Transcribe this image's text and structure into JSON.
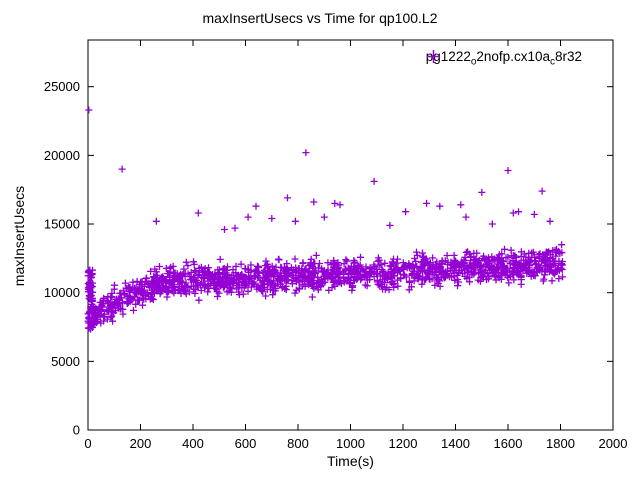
{
  "background": "#ffffff",
  "chart_data": {
    "type": "scatter",
    "title": "maxInsertUsecs vs Time for qp100.L2",
    "xlabel": "Time(s)",
    "ylabel": "maxInsertUsecs",
    "xlim": [
      0,
      2000
    ],
    "ylim": [
      0,
      28400
    ],
    "xticks": [
      0,
      200,
      400,
      600,
      800,
      1000,
      1200,
      1400,
      1600,
      1800,
      2000
    ],
    "yticks": [
      0,
      5000,
      10000,
      15000,
      20000,
      25000
    ],
    "grid": false,
    "legend_position": "top-right-inside",
    "marker": {
      "shape": "plus",
      "color": "#9400d3",
      "size": 7
    },
    "axis_color": "#000000",
    "series": [
      {
        "name": "pg1222_o2nofp.cx10a_c8r32",
        "legend_segments": [
          {
            "t": "pg1222"
          },
          {
            "t": "o",
            "sub": true
          },
          {
            "t": "2nofp.cx10a"
          },
          {
            "t": "c",
            "sub": true
          },
          {
            "t": "8r32"
          }
        ],
        "cloud": {
          "count": 1500,
          "seed": 11,
          "x_range": [
            0,
            1810
          ],
          "noise_amp": 1600,
          "y_clamp": [
            7350,
            15000
          ],
          "trend": [
            [
              0,
              8300
            ],
            [
              60,
              8700
            ],
            [
              120,
              9400
            ],
            [
              200,
              10200
            ],
            [
              300,
              10800
            ],
            [
              450,
              10900
            ],
            [
              700,
              11100
            ],
            [
              1000,
              11300
            ],
            [
              1300,
              11600
            ],
            [
              1600,
              11900
            ],
            [
              1810,
              12200
            ]
          ]
        },
        "start_cluster": {
          "count": 70,
          "seed": 4,
          "x_range": [
            0,
            18
          ],
          "y_range": [
            7450,
            11650
          ]
        },
        "outliers": [
          [
            3,
            23300
          ],
          [
            130,
            19000
          ],
          [
            260,
            15200
          ],
          [
            420,
            15800
          ],
          [
            520,
            14600
          ],
          [
            560,
            14700
          ],
          [
            610,
            15500
          ],
          [
            640,
            16300
          ],
          [
            700,
            15400
          ],
          [
            760,
            16900
          ],
          [
            790,
            15200
          ],
          [
            830,
            20200
          ],
          [
            860,
            16600
          ],
          [
            900,
            15500
          ],
          [
            940,
            16500
          ],
          [
            960,
            16400
          ],
          [
            1090,
            18100
          ],
          [
            1150,
            14900
          ],
          [
            1210,
            15900
          ],
          [
            1290,
            16500
          ],
          [
            1340,
            16300
          ],
          [
            1420,
            16400
          ],
          [
            1440,
            15500
          ],
          [
            1500,
            17300
          ],
          [
            1540,
            15000
          ],
          [
            1600,
            18900
          ],
          [
            1620,
            15800
          ],
          [
            1640,
            15900
          ],
          [
            1700,
            15700
          ],
          [
            1730,
            17400
          ],
          [
            1760,
            15200
          ]
        ]
      }
    ]
  }
}
